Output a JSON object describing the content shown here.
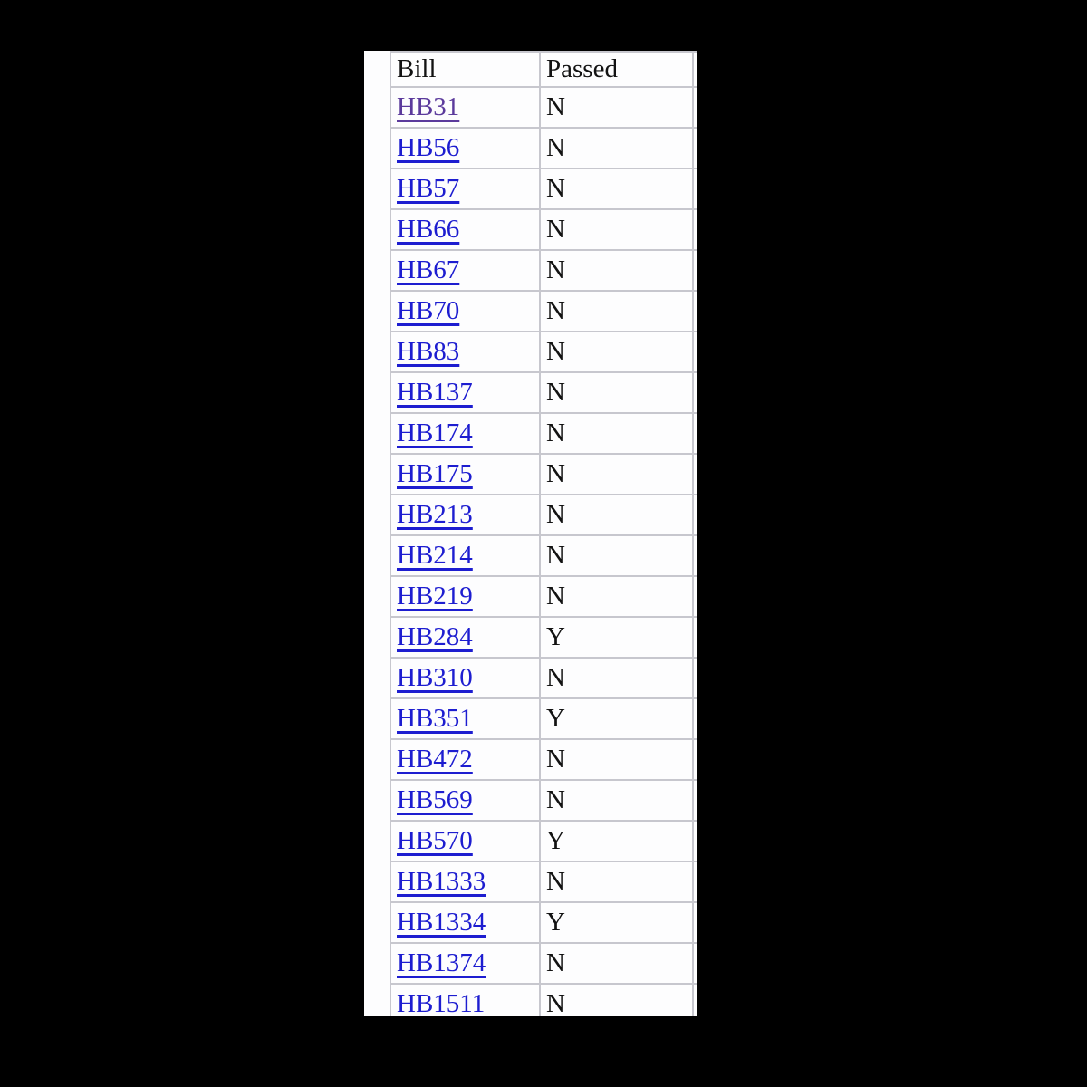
{
  "page": {
    "letterbox_background": "#000000",
    "canvas_background": "#fdfdfe"
  },
  "colors": {
    "table_border": "#c7c7ce",
    "text": "#121212",
    "link": "#1d1dd0",
    "link_visited": "#5b3a9c"
  },
  "table": {
    "columns": [
      {
        "label": "Bill"
      },
      {
        "label": "Passed"
      }
    ],
    "rows": [
      {
        "bill": "HB31",
        "passed": "N",
        "visited": true
      },
      {
        "bill": "HB56",
        "passed": "N",
        "visited": false
      },
      {
        "bill": "HB57",
        "passed": "N",
        "visited": false
      },
      {
        "bill": "HB66",
        "passed": "N",
        "visited": false
      },
      {
        "bill": "HB67",
        "passed": "N",
        "visited": false
      },
      {
        "bill": "HB70",
        "passed": "N",
        "visited": false
      },
      {
        "bill": "HB83",
        "passed": "N",
        "visited": false
      },
      {
        "bill": "HB137",
        "passed": "N",
        "visited": false
      },
      {
        "bill": "HB174",
        "passed": "N",
        "visited": false
      },
      {
        "bill": "HB175",
        "passed": "N",
        "visited": false
      },
      {
        "bill": "HB213",
        "passed": "N",
        "visited": false
      },
      {
        "bill": "HB214",
        "passed": "N",
        "visited": false
      },
      {
        "bill": "HB219",
        "passed": "N",
        "visited": false
      },
      {
        "bill": "HB284",
        "passed": "Y",
        "visited": false
      },
      {
        "bill": "HB310",
        "passed": "N",
        "visited": false
      },
      {
        "bill": "HB351",
        "passed": "Y",
        "visited": false
      },
      {
        "bill": "HB472",
        "passed": "N",
        "visited": false
      },
      {
        "bill": "HB569",
        "passed": "N",
        "visited": false
      },
      {
        "bill": "HB570",
        "passed": "Y",
        "visited": false
      },
      {
        "bill": "HB1333",
        "passed": "N",
        "visited": false
      },
      {
        "bill": "HB1334",
        "passed": "Y",
        "visited": false
      },
      {
        "bill": "HB1374",
        "passed": "N",
        "visited": false
      },
      {
        "bill": "HB1511",
        "passed": "N",
        "visited": false
      }
    ]
  }
}
